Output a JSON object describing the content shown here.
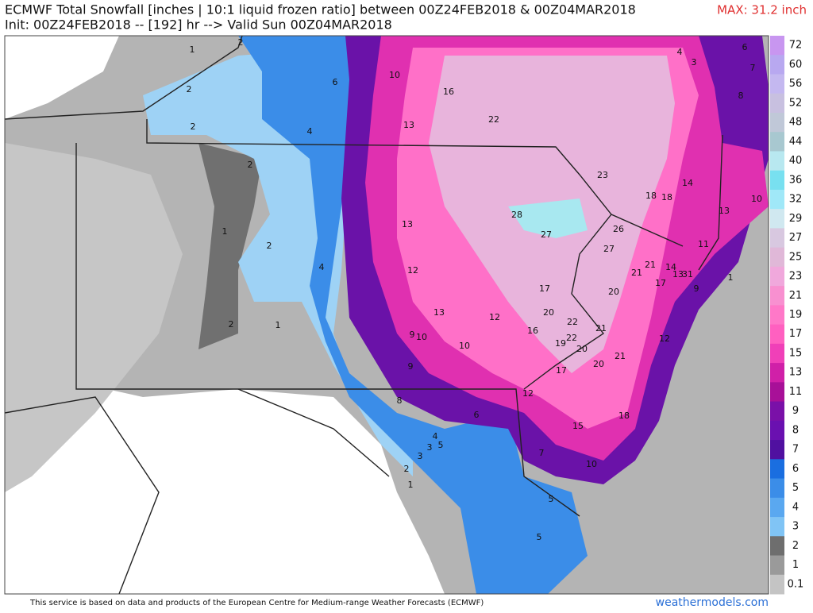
{
  "header": {
    "title": "ECMWF Total Snowfall [inches | 10:1 liquid frozen ratio] between 00Z24FEB2018 & 00Z04MAR2018",
    "subtitle": "Init: 00Z24FEB2018 -- [192] hr --> Valid Sun 00Z04MAR2018",
    "max": "MAX: 31.2 inch"
  },
  "legend": {
    "labels": [
      "72",
      "60",
      "56",
      "52",
      "48",
      "44",
      "40",
      "36",
      "32",
      "29",
      "27",
      "25",
      "23",
      "21",
      "19",
      "17",
      "15",
      "13",
      "11",
      "9",
      "8",
      "7",
      "6",
      "5",
      "4",
      "3",
      "2",
      "1",
      "0.1"
    ]
  },
  "map": {
    "labels": [
      "1",
      "2",
      "2",
      "6",
      "10",
      "16",
      "13",
      "22",
      "4",
      "2",
      "4",
      "3",
      "6",
      "7",
      "8",
      "2",
      "23",
      "14",
      "18",
      "18",
      "10",
      "13",
      "28",
      "27",
      "26",
      "13",
      "1",
      "2",
      "27",
      "11",
      "4",
      "12",
      "21",
      "14",
      "21",
      "13",
      "31",
      "17",
      "9",
      "1",
      "17",
      "20",
      "13",
      "12",
      "20",
      "2",
      "1",
      "9",
      "10",
      "16",
      "22",
      "21",
      "22",
      "19",
      "12",
      "10",
      "20",
      "21",
      "9",
      "20",
      "17",
      "8",
      "12",
      "6",
      "18",
      "15",
      "4",
      "5",
      "3",
      "7",
      "3",
      "10",
      "2",
      "1",
      "5",
      "5"
    ]
  },
  "footer": {
    "credit": "This service is based on data and products of the European Centre for Medium-range Weather Forecasts (ECMWF)",
    "site": "weathermodels.com"
  }
}
